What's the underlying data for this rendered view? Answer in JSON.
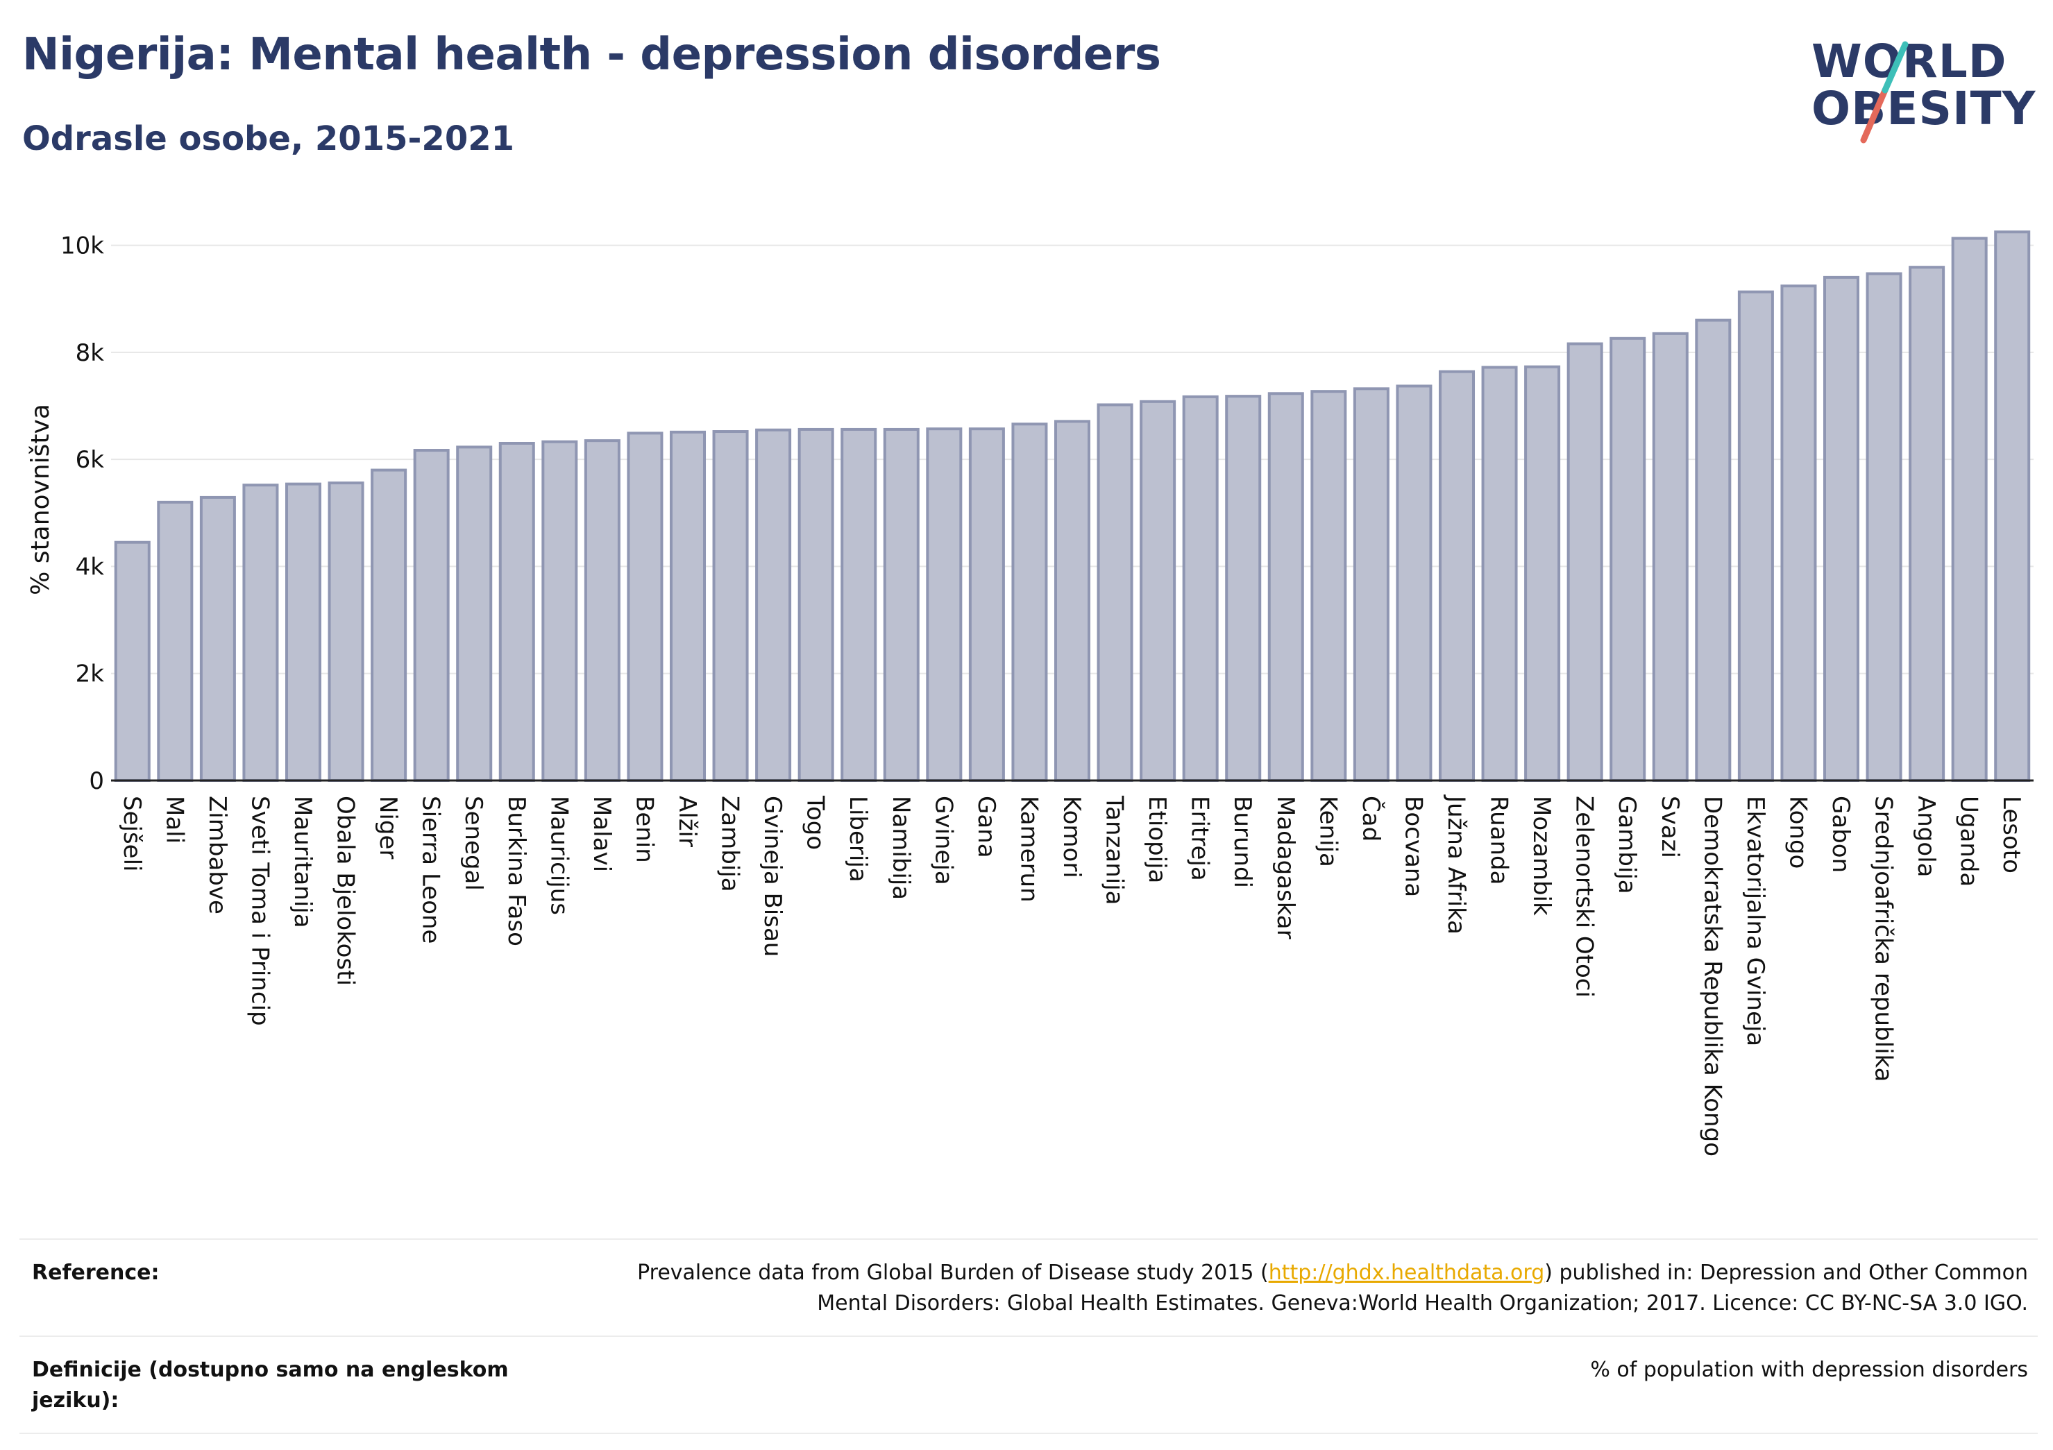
{
  "title": "Nigerija: Mental health - depression disorders",
  "subtitle": "Odrasle osobe, 2015-2021",
  "logo": {
    "line1": "WORLD",
    "line2": "OBESITY",
    "colors": {
      "text": "#2b3a67",
      "slash_top": "#3dbfb8",
      "slash_bottom": "#e4695a"
    }
  },
  "colors": {
    "bar_fill": "#bcc0d0",
    "bar_stroke": "#8f96b2",
    "title": "#2b3a67",
    "link": "#e8a900"
  },
  "chart_data": {
    "type": "bar",
    "title": "Nigerija: Mental health - depression disorders",
    "subtitle": "Odrasle osobe, 2015-2021",
    "xlabel": "",
    "ylabel": "% stanovništva",
    "ylim": [
      0,
      10500
    ],
    "yticks": [
      0,
      2000,
      4000,
      6000,
      8000,
      10000
    ],
    "ytick_labels": [
      "0",
      "2k",
      "4k",
      "6k",
      "8k",
      "10k"
    ],
    "grid": true,
    "categories": [
      "Sejšeli",
      "Mali",
      "Zimbabve",
      "Sveti Toma i Princip",
      "Mauritanija",
      "Obala Bjelokosti",
      "Niger",
      "Sierra Leone",
      "Senegal",
      "Burkina Faso",
      "Mauricijus",
      "Malavi",
      "Benin",
      "Alžir",
      "Zambija",
      "Gvineja Bisau",
      "Togo",
      "Liberija",
      "Namibija",
      "Gvineja",
      "Gana",
      "Kamerun",
      "Komori",
      "Tanzanija",
      "Etiopija",
      "Eritreja",
      "Burundi",
      "Madagaskar",
      "Kenija",
      "Čad",
      "Bocvana",
      "Južna Afrika",
      "Ruanda",
      "Mozambik",
      "Zelenortski Otoci",
      "Gambija",
      "Svazi",
      "Demokratska Republika Kongo",
      "Ekvatorijalna Gvineja",
      "Kongo",
      "Gabon",
      "Srednjoafrička republika",
      "Angola",
      "Uganda",
      "Lesoto"
    ],
    "values": [
      4450,
      5200,
      5290,
      5520,
      5540,
      5560,
      5800,
      6170,
      6230,
      6300,
      6330,
      6350,
      6490,
      6510,
      6520,
      6550,
      6560,
      6560,
      6560,
      6570,
      6570,
      6660,
      6710,
      7020,
      7080,
      7170,
      7180,
      7230,
      7270,
      7320,
      7370,
      7640,
      7720,
      7730,
      8160,
      8260,
      8350,
      8600,
      9130,
      9240,
      9400,
      9470,
      9590,
      10130,
      10250
    ]
  },
  "references": [
    {
      "key": "Reference:",
      "value_before": "Prevalence data from Global Burden of Disease study 2015 (",
      "link": "http://ghdx.healthdata.org",
      "value_after": ") published in: Depression and Other Common Mental Disorders: Global Health Estimates. Geneva:World Health Organization; 2017. Licence: CC BY-NC-SA 3.0 IGO."
    },
    {
      "key": "Definicije (dostupno samo na engleskom jeziku):",
      "value": "% of population with depression disorders"
    }
  ]
}
